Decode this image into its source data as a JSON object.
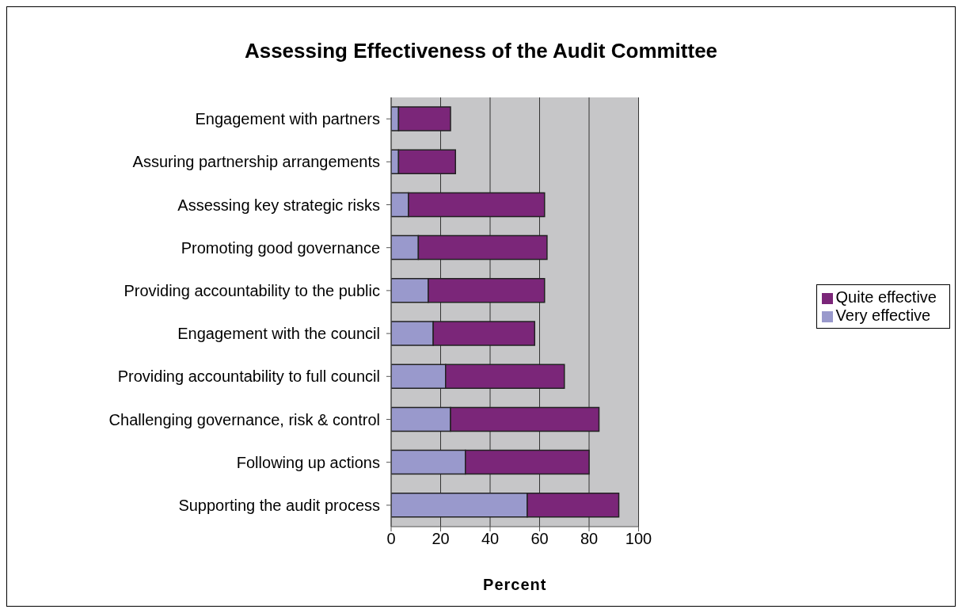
{
  "chart_data": {
    "type": "bar",
    "title": "Assessing Effectiveness of the Audit Committee",
    "xlabel": "Percent",
    "orientation": "horizontal",
    "stacked": true,
    "categories": [
      "Engagement with partners",
      "Assuring partnership arrangements",
      "Assessing key strategic risks",
      "Promoting good governance",
      "Providing accountability to the public",
      "Engagement with the council",
      "Providing accountability to full council",
      "Challenging governance, risk & control",
      "Following up actions",
      "Supporting the audit process"
    ],
    "series": [
      {
        "name": "Very effective",
        "color": "#9999cc",
        "values": [
          3,
          3,
          7,
          11,
          15,
          17,
          22,
          24,
          30,
          55
        ]
      },
      {
        "name": "Quite effective",
        "color": "#7b2679",
        "values": [
          21,
          23,
          55,
          52,
          47,
          41,
          48,
          60,
          50,
          37
        ]
      }
    ],
    "xlim": [
      0,
      100
    ],
    "xticks": [
      0,
      20,
      40,
      60,
      80,
      100
    ],
    "grid": "x",
    "legend": "right"
  }
}
